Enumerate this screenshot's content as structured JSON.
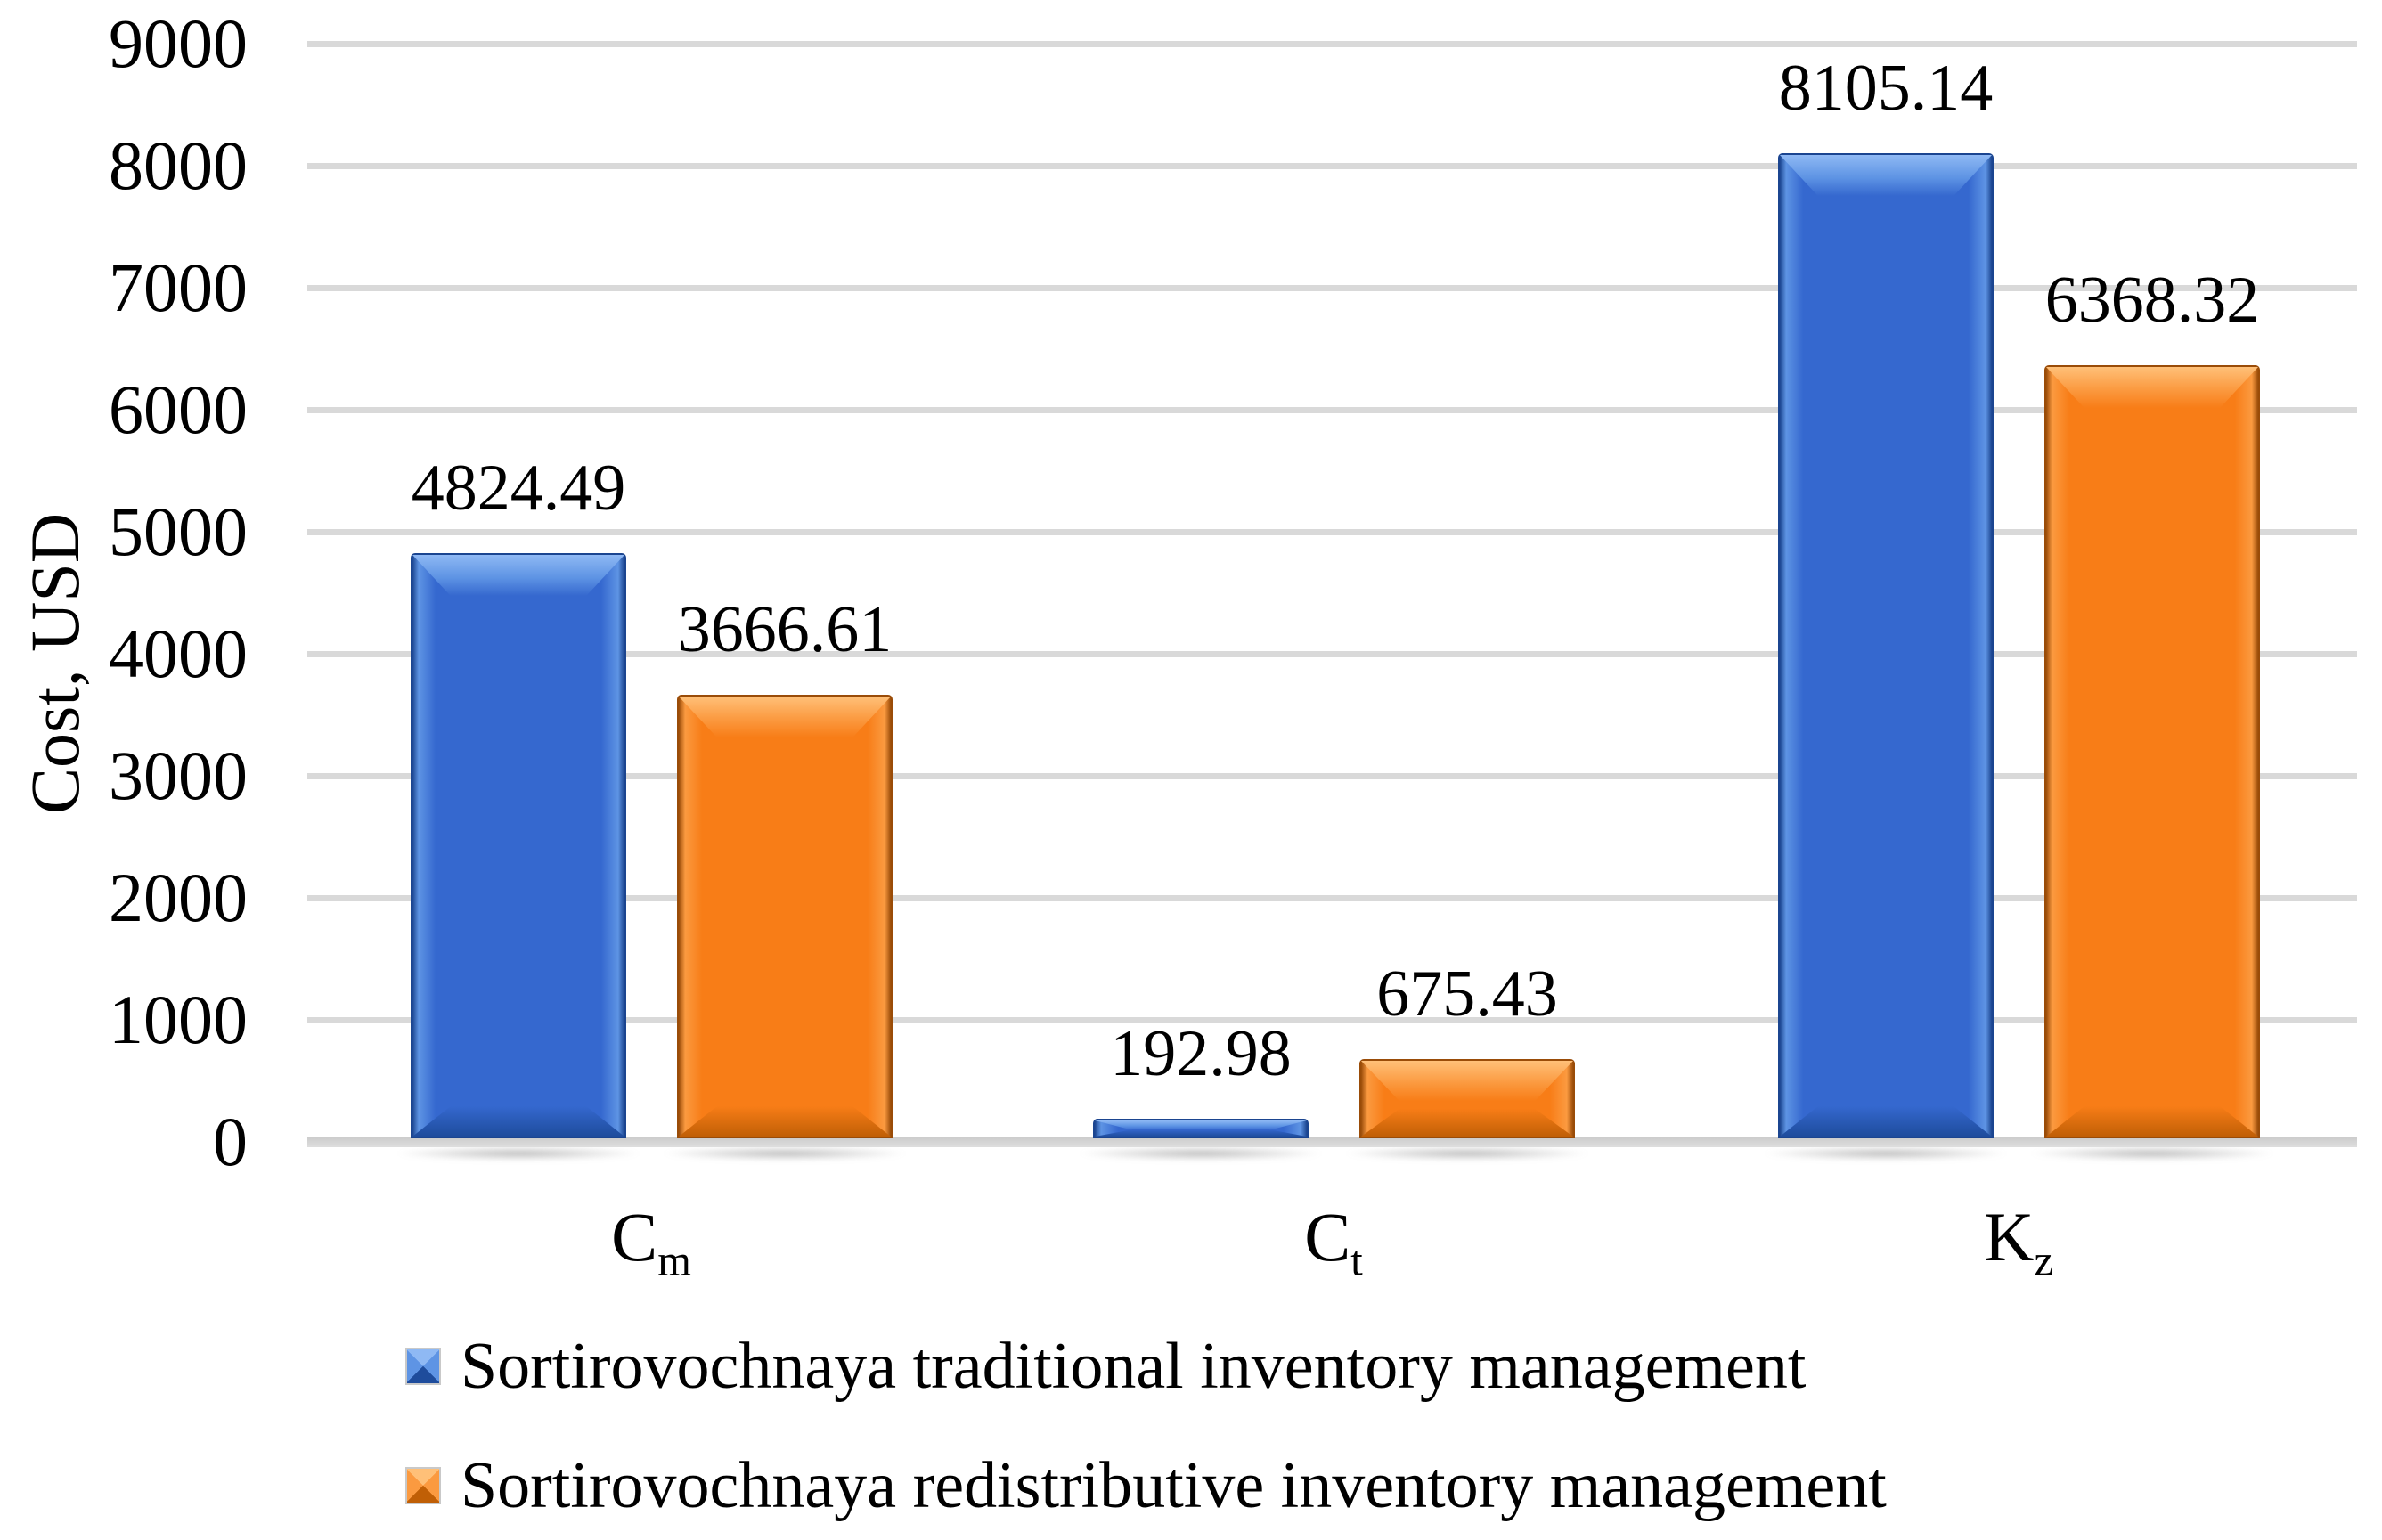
{
  "chart_data": {
    "type": "bar",
    "title": "",
    "ylabel": "Cost, USD",
    "xlabel": "",
    "categories": [
      {
        "base": "C",
        "sub": "m"
      },
      {
        "base": "C",
        "sub": "t"
      },
      {
        "base": "K",
        "sub": "z"
      }
    ],
    "series": [
      {
        "name": "Sortirovochnaya traditional inventory management",
        "values": [
          4824.49,
          192.98,
          8105.14
        ],
        "value_labels": [
          "4824.49",
          "192.98",
          "8105.14"
        ],
        "color": "#3568CF",
        "palette": {
          "base": "#3568CF",
          "light": "#8FB9F4",
          "mid": "#5E94E4",
          "dark": "#1E4C9C",
          "edge": "#1B4590"
        }
      },
      {
        "name": "Sortirovochnaya redistributive inventory management",
        "values": [
          3666.61,
          675.43,
          6368.32
        ],
        "value_labels": [
          "3666.61",
          "675.43",
          "6368.32"
        ],
        "color": "#F87D17",
        "palette": {
          "base": "#F87D17",
          "light": "#FFC078",
          "mid": "#FB9A40",
          "dark": "#C05F06",
          "edge": "#9A4C08"
        }
      }
    ],
    "ylim": [
      0,
      9000
    ],
    "yticks": [
      0,
      1000,
      2000,
      3000,
      4000,
      5000,
      6000,
      7000,
      8000,
      9000
    ],
    "grid": true,
    "gridline_color": "#D9D9D9",
    "axis_line_color": "#D2D2D2",
    "legend_position": "bottom-left",
    "bar_style": "3d-bevel",
    "text_color": "#000000",
    "background_color": "#FFFFFF"
  }
}
